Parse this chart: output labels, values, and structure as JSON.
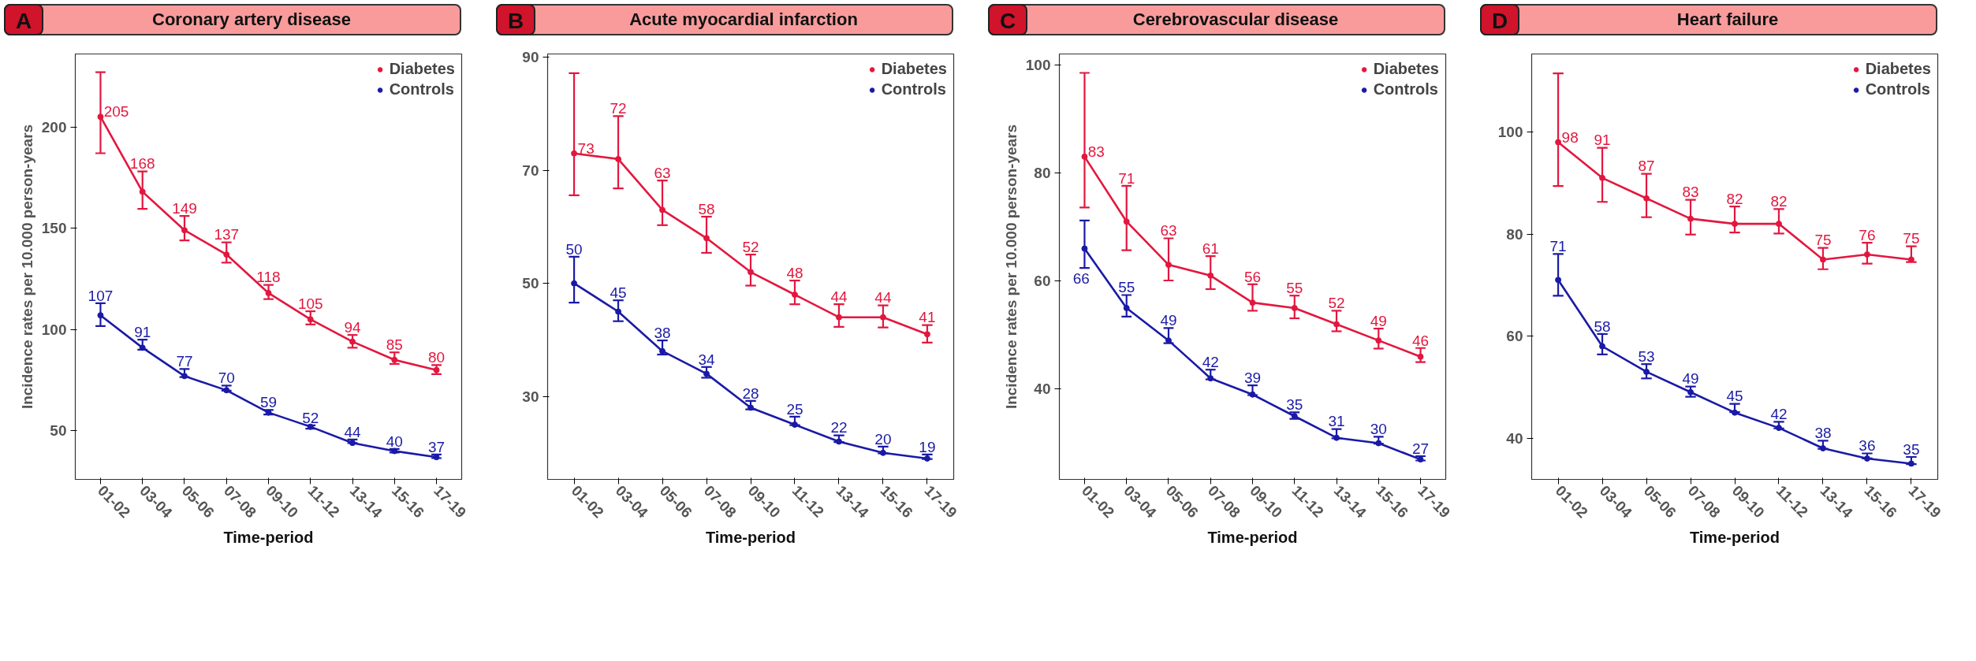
{
  "chart_data": [
    {
      "type": "line",
      "title": "Coronary artery disease",
      "annotations": [
        "A"
      ],
      "ylabel": "Incidence rates per 10.000 person-years",
      "xlabel": "Time-period",
      "categories": [
        "01-02",
        "03-04",
        "05-06",
        "07-08",
        "09-10",
        "11-12",
        "13-14",
        "15-16",
        "17-19"
      ],
      "ylim": [
        26,
        236
      ],
      "yticks": [
        50,
        100,
        150,
        200
      ],
      "grid": false,
      "legend": "top right",
      "marker": "circle",
      "data_labels": true,
      "series": [
        {
          "name": "Diabetes",
          "color": "#e3173e",
          "values": [
            205,
            168,
            149,
            137,
            118,
            105,
            94,
            85,
            80
          ],
          "errors": [
            [
              187,
              227
            ],
            [
              159.5,
              178
            ],
            [
              144,
              156
            ],
            [
              133,
              143
            ],
            [
              115,
              122
            ],
            [
              102.5,
              109
            ],
            [
              91,
              97.3
            ],
            [
              83,
              88.7
            ],
            [
              78,
              82.4
            ]
          ]
        },
        {
          "name": "Controls",
          "color": "#1a1aa6",
          "values": [
            107,
            91,
            77,
            70,
            59,
            52,
            44,
            40,
            37
          ],
          "errors": [
            [
              101.7,
              113
            ],
            [
              90,
              95
            ],
            [
              76.5,
              80.5
            ],
            [
              69.8,
              72.3
            ],
            [
              58,
              60.3
            ],
            [
              51,
              52.7
            ],
            [
              43.9,
              45.7
            ],
            [
              39.3,
              41
            ],
            [
              36.5,
              38.3
            ]
          ]
        }
      ]
    },
    {
      "type": "line",
      "title": "Acute myocardial infarction",
      "annotations": [
        "B"
      ],
      "xlabel": "Time-period",
      "categories": [
        "01-02",
        "03-04",
        "05-06",
        "07-08",
        "09-10",
        "11-12",
        "13-14",
        "15-16",
        "17-19"
      ],
      "ylim": [
        15.3,
        90.6
      ],
      "yticks": [
        30,
        50,
        70,
        90
      ],
      "grid": false,
      "legend": "top right",
      "marker": "circle",
      "data_labels": true,
      "series": [
        {
          "name": "Diabetes",
          "color": "#e3173e",
          "values": [
            73,
            72,
            63,
            58,
            52,
            48,
            44,
            44,
            41
          ],
          "errors": [
            [
              65.6,
              87.2
            ],
            [
              66.8,
              79.6
            ],
            [
              60.3,
              68.2
            ],
            [
              55.4,
              61.8
            ],
            [
              49.6,
              55.1
            ],
            [
              46.3,
              50.5
            ],
            [
              42.3,
              46.3
            ],
            [
              42.2,
              46.1
            ],
            [
              39.5,
              42.6
            ]
          ]
        },
        {
          "name": "Controls",
          "color": "#1a1aa6",
          "values": [
            50,
            45,
            38,
            34,
            28,
            25,
            22,
            20,
            19
          ],
          "errors": [
            [
              46.6,
              54.7
            ],
            [
              43.3,
              47
            ],
            [
              37.4,
              39.9
            ],
            [
              33.3,
              35.2
            ],
            [
              27.7,
              29.2
            ],
            [
              24.9,
              26.4
            ],
            [
              21.9,
              23.1
            ],
            [
              19.9,
              21.1
            ],
            [
              18.9,
              19.7
            ]
          ]
        }
      ]
    },
    {
      "type": "line",
      "title": "Cerebrovascular disease",
      "annotations": [
        "C"
      ],
      "ylabel": "Incidence rates per 10.000 person-years",
      "xlabel": "Time-period",
      "categories": [
        "01-02",
        "03-04",
        "05-06",
        "07-08",
        "09-10",
        "11-12",
        "13-14",
        "15-16",
        "17-19"
      ],
      "ylim": [
        23.3,
        102
      ],
      "yticks": [
        40,
        60,
        80,
        100
      ],
      "grid": false,
      "legend": "top right",
      "marker": "circle",
      "data_labels": true,
      "series": [
        {
          "name": "Diabetes",
          "color": "#e3173e",
          "values": [
            83,
            71,
            63,
            61,
            56,
            55,
            52,
            49,
            46
          ],
          "errors": [
            [
              73.6,
              98.5
            ],
            [
              65.7,
              77.6
            ],
            [
              60.1,
              67.9
            ],
            [
              58.5,
              64.6
            ],
            [
              54.5,
              59.4
            ],
            [
              53.1,
              57.3
            ],
            [
              50.7,
              54.5
            ],
            [
              47.5,
              51.2
            ],
            [
              45,
              47.6
            ]
          ]
        },
        {
          "name": "Controls",
          "color": "#1a1aa6",
          "values": [
            66,
            55,
            49,
            42,
            39,
            35,
            31,
            30,
            27
          ],
          "errors": [
            [
              62.4,
              71.2
            ],
            [
              53.4,
              57.4
            ],
            [
              48.5,
              51.3
            ],
            [
              41.8,
              43.6
            ],
            [
              38.9,
              40.7
            ],
            [
              34.5,
              35.7
            ],
            [
              30.9,
              32.6
            ],
            [
              29.9,
              31.2
            ],
            [
              26.8,
              27.6
            ]
          ]
        }
      ]
    },
    {
      "type": "line",
      "title": "Heart failure",
      "annotations": [
        "D"
      ],
      "xlabel": "Time-period",
      "categories": [
        "01-02",
        "03-04",
        "05-06",
        "07-08",
        "09-10",
        "11-12",
        "13-14",
        "15-16",
        "17-19"
      ],
      "ylim": [
        31.9,
        115.3
      ],
      "yticks": [
        40,
        60,
        80,
        100
      ],
      "grid": false,
      "legend": "top right",
      "marker": "circle",
      "data_labels": true,
      "series": [
        {
          "name": "Diabetes",
          "color": "#e3173e",
          "values": [
            98,
            91,
            87,
            83,
            82,
            82,
            75,
            76,
            75
          ],
          "errors": [
            [
              89.4,
              111.5
            ],
            [
              86.3,
              96.9
            ],
            [
              83.3,
              91.8
            ],
            [
              79.9,
              86.7
            ],
            [
              80.3,
              85.4
            ],
            [
              80.1,
              84.9
            ],
            [
              73.1,
              77.3
            ],
            [
              74.2,
              78.3
            ],
            [
              74.5,
              77.6
            ]
          ]
        },
        {
          "name": "Controls",
          "color": "#1a1aa6",
          "values": [
            71,
            58,
            53,
            49,
            45,
            42,
            38,
            36,
            35
          ],
          "errors": [
            [
              67.9,
              76.1
            ],
            [
              56.4,
              60.4
            ],
            [
              51.7,
              54.5
            ],
            [
              48.1,
              50.1
            ],
            [
              45.1,
              46.7
            ],
            [
              41.9,
              43.2
            ],
            [
              37.9,
              39.5
            ],
            [
              36,
              37
            ],
            [
              34.9,
              36.3
            ]
          ]
        }
      ]
    }
  ]
}
